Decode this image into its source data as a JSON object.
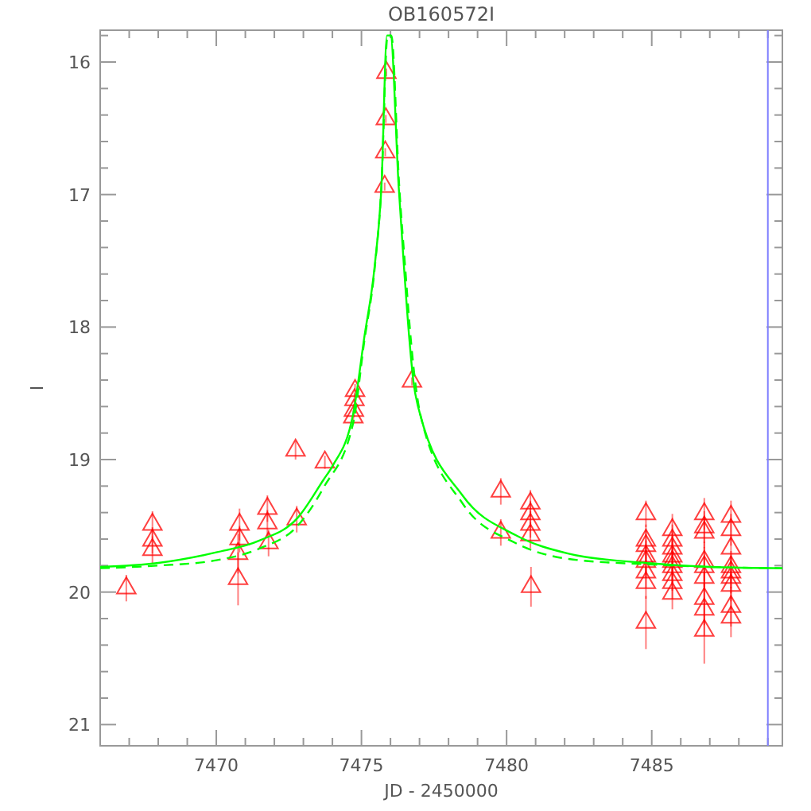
{
  "chart_data": {
    "type": "scatter",
    "title": "OB160572I",
    "xlabel": "JD - 2450000",
    "ylabel": "I",
    "xlim": [
      7466,
      7489.5
    ],
    "ylim": [
      21.16,
      15.76
    ],
    "xticks": [
      {
        "value": 7466,
        "label": null
      },
      {
        "value": 7467,
        "label": null
      },
      {
        "value": 7468,
        "label": null
      },
      {
        "value": 7469,
        "label": null
      },
      7470,
      {
        "value": 7471,
        "label": null
      },
      {
        "value": 7472,
        "label": null
      },
      {
        "value": 7473,
        "label": null
      },
      {
        "value": 7474,
        "label": null
      },
      7475,
      {
        "value": 7476,
        "label": null
      },
      {
        "value": 7477,
        "label": null
      },
      {
        "value": 7478,
        "label": null
      },
      {
        "value": 7479,
        "label": null
      },
      7480,
      {
        "value": 7481,
        "label": null
      },
      {
        "value": 7482,
        "label": null
      },
      {
        "value": 7483,
        "label": null
      },
      {
        "value": 7484,
        "label": null
      },
      7485,
      {
        "value": 7486,
        "label": null
      },
      {
        "value": 7487,
        "label": null
      },
      {
        "value": 7488,
        "label": null
      },
      {
        "value": 7489,
        "label": null
      }
    ],
    "yticks": [
      {
        "value": 15.8,
        "label": null
      },
      16,
      {
        "value": 16.2,
        "label": null
      },
      {
        "value": 16.4,
        "label": null
      },
      {
        "value": 16.6,
        "label": null
      },
      {
        "value": 16.8,
        "label": null
      },
      17,
      {
        "value": 17.2,
        "label": null
      },
      {
        "value": 17.4,
        "label": null
      },
      {
        "value": 17.6,
        "label": null
      },
      {
        "value": 17.8,
        "label": null
      },
      18,
      {
        "value": 18.2,
        "label": null
      },
      {
        "value": 18.4,
        "label": null
      },
      {
        "value": 18.6,
        "label": null
      },
      {
        "value": 18.8,
        "label": null
      },
      19,
      {
        "value": 19.2,
        "label": null
      },
      {
        "value": 19.4,
        "label": null
      },
      {
        "value": 19.6,
        "label": null
      },
      {
        "value": 19.8,
        "label": null
      },
      20,
      {
        "value": 20.2,
        "label": null
      },
      {
        "value": 20.4,
        "label": null
      },
      {
        "value": 20.6,
        "label": null
      },
      {
        "value": 20.8,
        "label": null
      },
      21
    ],
    "grid": false,
    "ref_lines": [
      {
        "axis": "x",
        "value": 7489,
        "color": "#8080ff"
      }
    ],
    "series": [
      {
        "color": "#ff0000",
        "marker": "triangle",
        "x": [
          7466.9,
          7467.8,
          7467.8,
          7467.8,
          7470.75,
          7470.75,
          7470.8,
          7470.8,
          7471.76,
          7471.76,
          7471.8,
          7472.73,
          7472.77,
          7473.74,
          7474.72,
          7474.74,
          7474.76,
          7474.78,
          7475.86,
          7475.84,
          7475.82,
          7475.8,
          7476.74,
          7479.8,
          7479.8,
          7480.82,
          7480.82,
          7480.82,
          7480.82,
          7480.84,
          7484.8,
          7484.8,
          7484.8,
          7484.8,
          7484.8,
          7484.8,
          7484.8,
          7484.8,
          7485.71,
          7485.71,
          7485.71,
          7485.71,
          7485.71,
          7485.71,
          7485.71,
          7485.71,
          7485.71,
          7486.81,
          7486.81,
          7486.81,
          7486.81,
          7486.81,
          7486.81,
          7486.81,
          7486.81,
          7486.81,
          7487.73,
          7487.73,
          7487.73,
          7487.73,
          7487.73,
          7487.73,
          7487.73,
          7487.73,
          7487.73
        ],
        "values": [
          19.97,
          19.49,
          19.61,
          19.68,
          19.9,
          19.71,
          19.6,
          19.49,
          19.37,
          19.48,
          19.63,
          18.93,
          19.45,
          19.02,
          18.68,
          18.63,
          18.55,
          18.48,
          16.08,
          16.43,
          16.68,
          16.94,
          18.41,
          19.24,
          19.55,
          19.33,
          19.41,
          19.49,
          19.57,
          19.96,
          19.41,
          19.61,
          19.65,
          19.73,
          19.77,
          19.85,
          19.93,
          20.23,
          19.53,
          19.61,
          19.67,
          19.73,
          19.77,
          19.81,
          19.87,
          19.93,
          20.01,
          19.41,
          19.51,
          19.55,
          19.77,
          19.81,
          19.89,
          20.05,
          20.13,
          20.29,
          19.43,
          19.53,
          19.67,
          19.81,
          19.85,
          19.89,
          19.95,
          20.11,
          20.19
        ],
        "errors": [
          0.1,
          0.1,
          0.1,
          0.1,
          0.2,
          0.15,
          0.1,
          0.12,
          0.1,
          0.1,
          0.1,
          0.07,
          0.1,
          0.05,
          0.05,
          0.05,
          0.05,
          0.05,
          0.03,
          0.03,
          0.03,
          0.03,
          0.03,
          0.1,
          0.1,
          0.1,
          0.1,
          0.1,
          0.1,
          0.15,
          0.1,
          0.12,
          0.12,
          0.12,
          0.12,
          0.12,
          0.12,
          0.2,
          0.12,
          0.12,
          0.12,
          0.12,
          0.12,
          0.12,
          0.12,
          0.12,
          0.12,
          0.12,
          0.12,
          0.12,
          0.15,
          0.15,
          0.15,
          0.2,
          0.2,
          0.25,
          0.12,
          0.12,
          0.12,
          0.12,
          0.12,
          0.12,
          0.12,
          0.15,
          0.15
        ]
      },
      {
        "type": "line",
        "color": "#00ff00",
        "line_style": "solid",
        "x": [
          7466,
          7468,
          7470,
          7471.5,
          7472.8,
          7473.7,
          7474.0,
          7474.72,
          7475.09,
          7475.46,
          7475.69,
          7475.88,
          7476.0,
          7476.28,
          7476.46,
          7476.65,
          7476.79,
          7477.01,
          7478.48,
          7480.31,
          7482.14,
          7484.8,
          7487,
          7489.5
        ],
        "values": [
          19.81,
          19.78,
          19.7,
          19.61,
          19.44,
          19.15,
          19.05,
          18.65,
          18.09,
          17.53,
          16.93,
          15.8,
          15.8,
          16.93,
          17.53,
          18.09,
          18.41,
          18.65,
          19.27,
          19.57,
          19.71,
          19.78,
          19.81,
          19.82
        ]
      },
      {
        "type": "line",
        "color": "#00ff00",
        "line_style": "dashed",
        "x": [
          7466,
          7468,
          7470,
          7471.5,
          7472.8,
          7473.7,
          7474.72,
          7475.09,
          7475.46,
          7475.69,
          7475.9,
          7476.03,
          7476.3,
          7476.5,
          7476.7,
          7476.85,
          7477.05,
          7478.48,
          7480.31,
          7482.14,
          7484.8,
          7487,
          7489.5
        ],
        "values": [
          19.82,
          19.8,
          19.76,
          19.67,
          19.5,
          19.21,
          18.72,
          18.12,
          17.55,
          16.93,
          15.8,
          15.8,
          16.93,
          17.53,
          18.09,
          18.41,
          18.68,
          19.33,
          19.63,
          19.75,
          19.79,
          19.81,
          19.82
        ]
      }
    ]
  }
}
